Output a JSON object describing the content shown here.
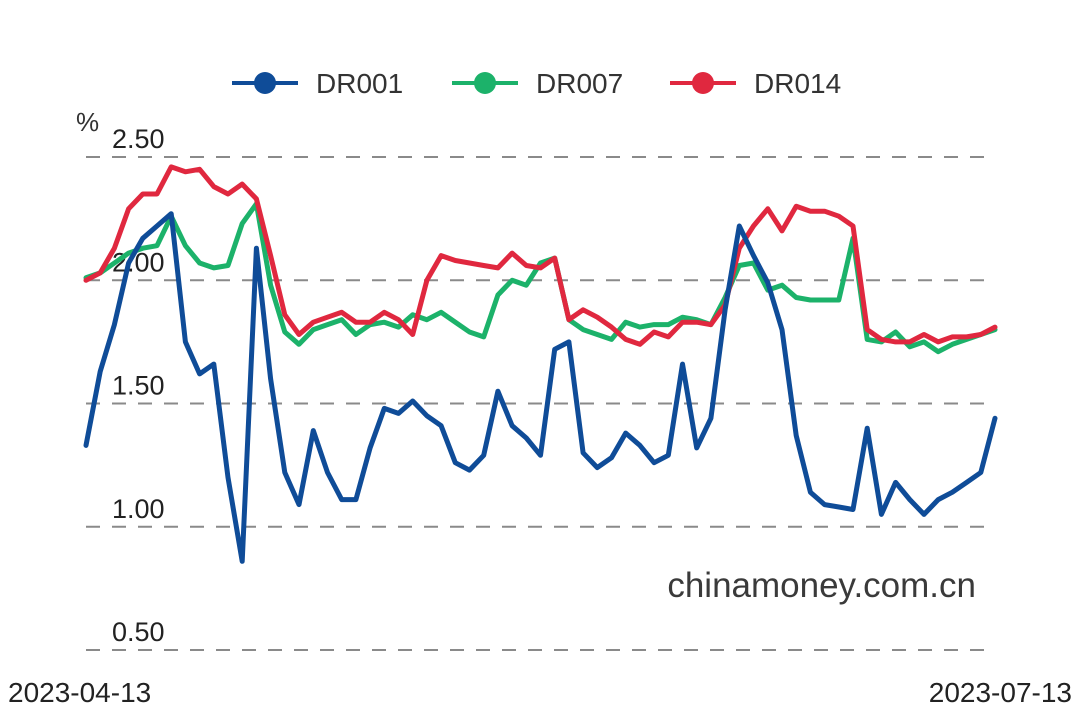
{
  "chart_data": {
    "type": "line",
    "y_unit": "%",
    "ylim": [
      0.5,
      2.5
    ],
    "y_ticks": [
      "2.50",
      "2.00",
      "1.50",
      "1.00",
      "0.50"
    ],
    "y_tick_values": [
      2.5,
      2.0,
      1.5,
      1.0,
      0.5
    ],
    "x_start_label": "2023-04-13",
    "x_end_label": "2023-07-13",
    "grid": "horizontal dashed",
    "legend_position": "top-center",
    "watermark": "chinamoney.com.cn",
    "series": [
      {
        "name": "DR001",
        "color": "#0f4c98",
        "values": [
          1.33,
          1.63,
          1.82,
          2.07,
          2.17,
          2.22,
          2.27,
          1.75,
          1.62,
          1.66,
          1.2,
          0.86,
          2.13,
          1.6,
          1.22,
          1.09,
          1.39,
          1.22,
          1.11,
          1.11,
          1.32,
          1.48,
          1.46,
          1.51,
          1.45,
          1.41,
          1.26,
          1.23,
          1.29,
          1.55,
          1.41,
          1.36,
          1.29,
          1.72,
          1.75,
          1.3,
          1.24,
          1.28,
          1.38,
          1.33,
          1.26,
          1.29,
          1.66,
          1.32,
          1.44,
          1.88,
          2.22,
          2.1,
          1.99,
          1.8,
          1.37,
          1.14,
          1.09,
          1.08,
          1.07,
          1.4,
          1.05,
          1.18,
          1.11,
          1.05,
          1.11,
          1.14,
          1.18,
          1.22,
          1.44
        ]
      },
      {
        "name": "DR007",
        "color": "#1cb26a",
        "values": [
          2.01,
          2.03,
          2.07,
          2.11,
          2.13,
          2.14,
          2.26,
          2.14,
          2.07,
          2.05,
          2.06,
          2.23,
          2.31,
          1.98,
          1.79,
          1.74,
          1.8,
          1.82,
          1.84,
          1.78,
          1.82,
          1.83,
          1.81,
          1.86,
          1.84,
          1.87,
          1.83,
          1.79,
          1.77,
          1.94,
          2.0,
          1.98,
          2.07,
          2.09,
          1.84,
          1.8,
          1.78,
          1.76,
          1.83,
          1.81,
          1.82,
          1.82,
          1.85,
          1.84,
          1.82,
          1.93,
          2.06,
          2.07,
          1.96,
          1.98,
          1.93,
          1.92,
          1.92,
          1.92,
          2.17,
          1.76,
          1.75,
          1.79,
          1.73,
          1.75,
          1.71,
          1.74,
          1.76,
          1.78,
          1.8
        ]
      },
      {
        "name": "DR014",
        "color": "#e0283f",
        "values": [
          2.0,
          2.03,
          2.13,
          2.29,
          2.35,
          2.35,
          2.46,
          2.44,
          2.45,
          2.38,
          2.35,
          2.39,
          2.33,
          2.1,
          1.86,
          1.78,
          1.83,
          1.85,
          1.87,
          1.83,
          1.83,
          1.87,
          1.84,
          1.78,
          2.0,
          2.1,
          2.08,
          2.07,
          2.06,
          2.05,
          2.11,
          2.06,
          2.05,
          2.09,
          1.84,
          1.88,
          1.85,
          1.81,
          1.76,
          1.74,
          1.79,
          1.77,
          1.83,
          1.83,
          1.82,
          1.9,
          2.13,
          2.22,
          2.29,
          2.2,
          2.3,
          2.28,
          2.28,
          2.26,
          2.22,
          1.8,
          1.76,
          1.75,
          1.75,
          1.78,
          1.75,
          1.77,
          1.77,
          1.78,
          1.81
        ]
      }
    ]
  }
}
